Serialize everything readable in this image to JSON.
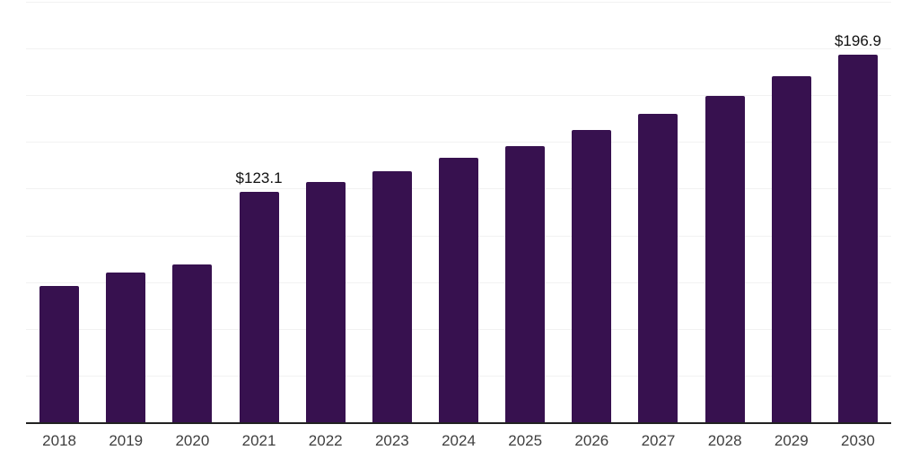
{
  "chart_data": {
    "type": "bar",
    "title": "",
    "xlabel": "",
    "ylabel": "",
    "categories": [
      "2018",
      "2019",
      "2020",
      "2021",
      "2022",
      "2023",
      "2024",
      "2025",
      "2026",
      "2027",
      "2028",
      "2029",
      "2030"
    ],
    "values": [
      73.1,
      80.2,
      84.5,
      123.1,
      128.4,
      134.2,
      141.3,
      148.0,
      156.6,
      165.2,
      174.8,
      185.3,
      196.9
    ],
    "point_labels": [
      "",
      "",
      "",
      "$123.1",
      "",
      "",
      "",
      "",
      "",
      "",
      "",
      "",
      "$196.9"
    ],
    "ylim": [
      0,
      225
    ],
    "gridline_interval": 25,
    "grid": "horizontal",
    "legend": "none"
  },
  "colors": {
    "bg": "#ffffff",
    "bar": "#37114F",
    "gridline": "#f2f2f2",
    "axis": "#222222",
    "tick_label": "#3f3f3f",
    "data_label": "#111111"
  }
}
